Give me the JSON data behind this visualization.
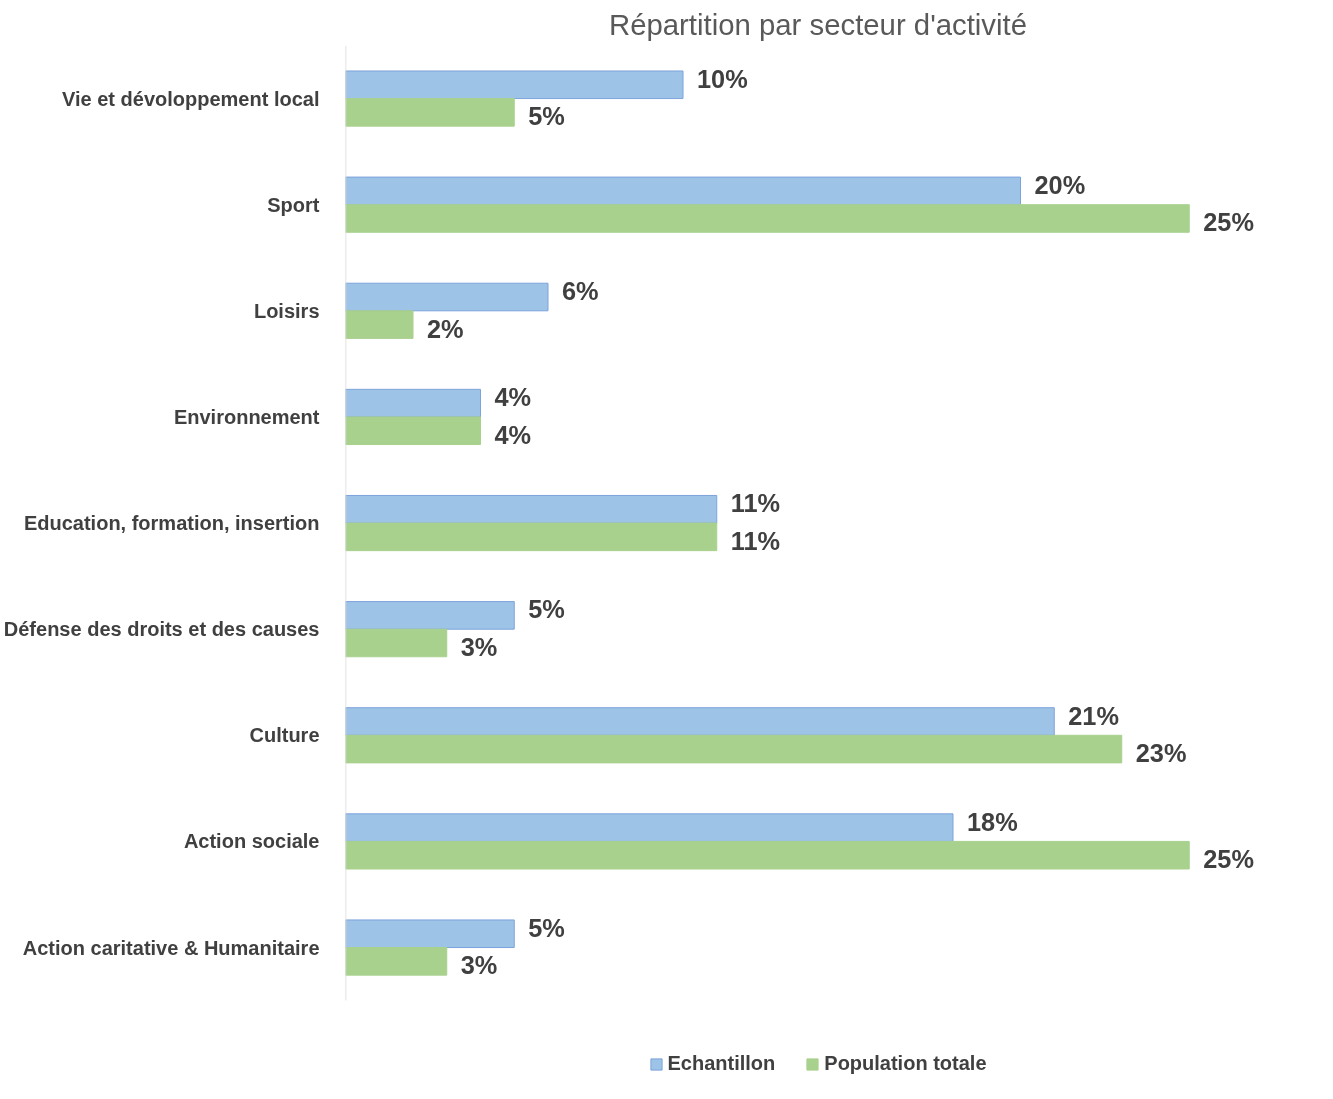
{
  "chart_data": {
    "type": "bar",
    "orientation": "horizontal",
    "title": "Répartition par secteur d'activité",
    "categories": [
      "Vie et dévoloppement local",
      "Sport",
      "Loisirs",
      "Environnement",
      "Education, formation, insertion",
      "Défense des droits et des causes",
      "Culture",
      "Action sociale",
      "Action caritative & Humanitaire"
    ],
    "series": [
      {
        "name": "Echantillon",
        "color": "#9dc3e6",
        "values": [
          10,
          20,
          6,
          4,
          11,
          5,
          21,
          18,
          5
        ],
        "value_labels": [
          "10%",
          "20%",
          "6%",
          "4%",
          "11%",
          "5%",
          "21%",
          "18%",
          "5%"
        ]
      },
      {
        "name": "Population totale",
        "color": "#a9d18e",
        "values": [
          5,
          25,
          2,
          4,
          11,
          3,
          23,
          25,
          3
        ],
        "value_labels": [
          "5%",
          "25%",
          "2%",
          "4%",
          "11%",
          "3%",
          "23%",
          "25%",
          "3%"
        ]
      }
    ],
    "grid": false,
    "legend": "bottom"
  }
}
